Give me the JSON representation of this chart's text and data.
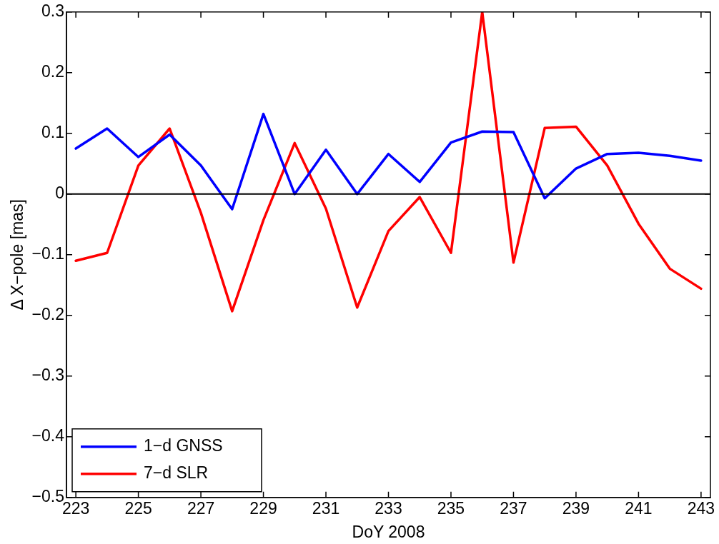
{
  "chart_data": {
    "type": "line",
    "xlabel": "DoY 2008",
    "ylabel": "Δ X−pole [mas]",
    "x": [
      223,
      224,
      225,
      226,
      227,
      228,
      229,
      230,
      231,
      232,
      233,
      234,
      235,
      236,
      237,
      238,
      239,
      240,
      241,
      242,
      243
    ],
    "series": [
      {
        "name": "1−d GNSS",
        "color": "#0000ff",
        "values": [
          0.075,
          0.108,
          0.061,
          0.098,
          0.047,
          -0.025,
          0.132,
          0.0,
          0.073,
          0.0,
          0.066,
          0.02,
          0.085,
          0.103,
          0.102,
          -0.007,
          0.042,
          0.066,
          0.068,
          0.063,
          0.055
        ]
      },
      {
        "name": "7−d SLR",
        "color": "#ff0000",
        "values": [
          -0.11,
          -0.097,
          0.047,
          0.108,
          -0.031,
          -0.193,
          -0.043,
          0.084,
          -0.024,
          -0.187,
          -0.061,
          -0.005,
          -0.097,
          0.3,
          -0.113,
          0.109,
          0.111,
          0.047,
          -0.049,
          -0.123,
          -0.156
        ]
      }
    ],
    "xlim": [
      222.7,
      243.3
    ],
    "xticks": [
      223,
      225,
      227,
      229,
      231,
      233,
      235,
      237,
      239,
      241,
      243
    ],
    "ylim": [
      -0.5,
      0.3
    ],
    "yticks": [
      -0.5,
      -0.4,
      -0.3,
      -0.2,
      -0.1,
      0,
      0.1,
      0.2,
      0.3
    ],
    "ref_lines": [
      {
        "axis": "y",
        "value": 0,
        "color": "#000000"
      }
    ],
    "legend": "bottom left",
    "grid": false,
    "marker": "none",
    "line_style": "solid"
  }
}
